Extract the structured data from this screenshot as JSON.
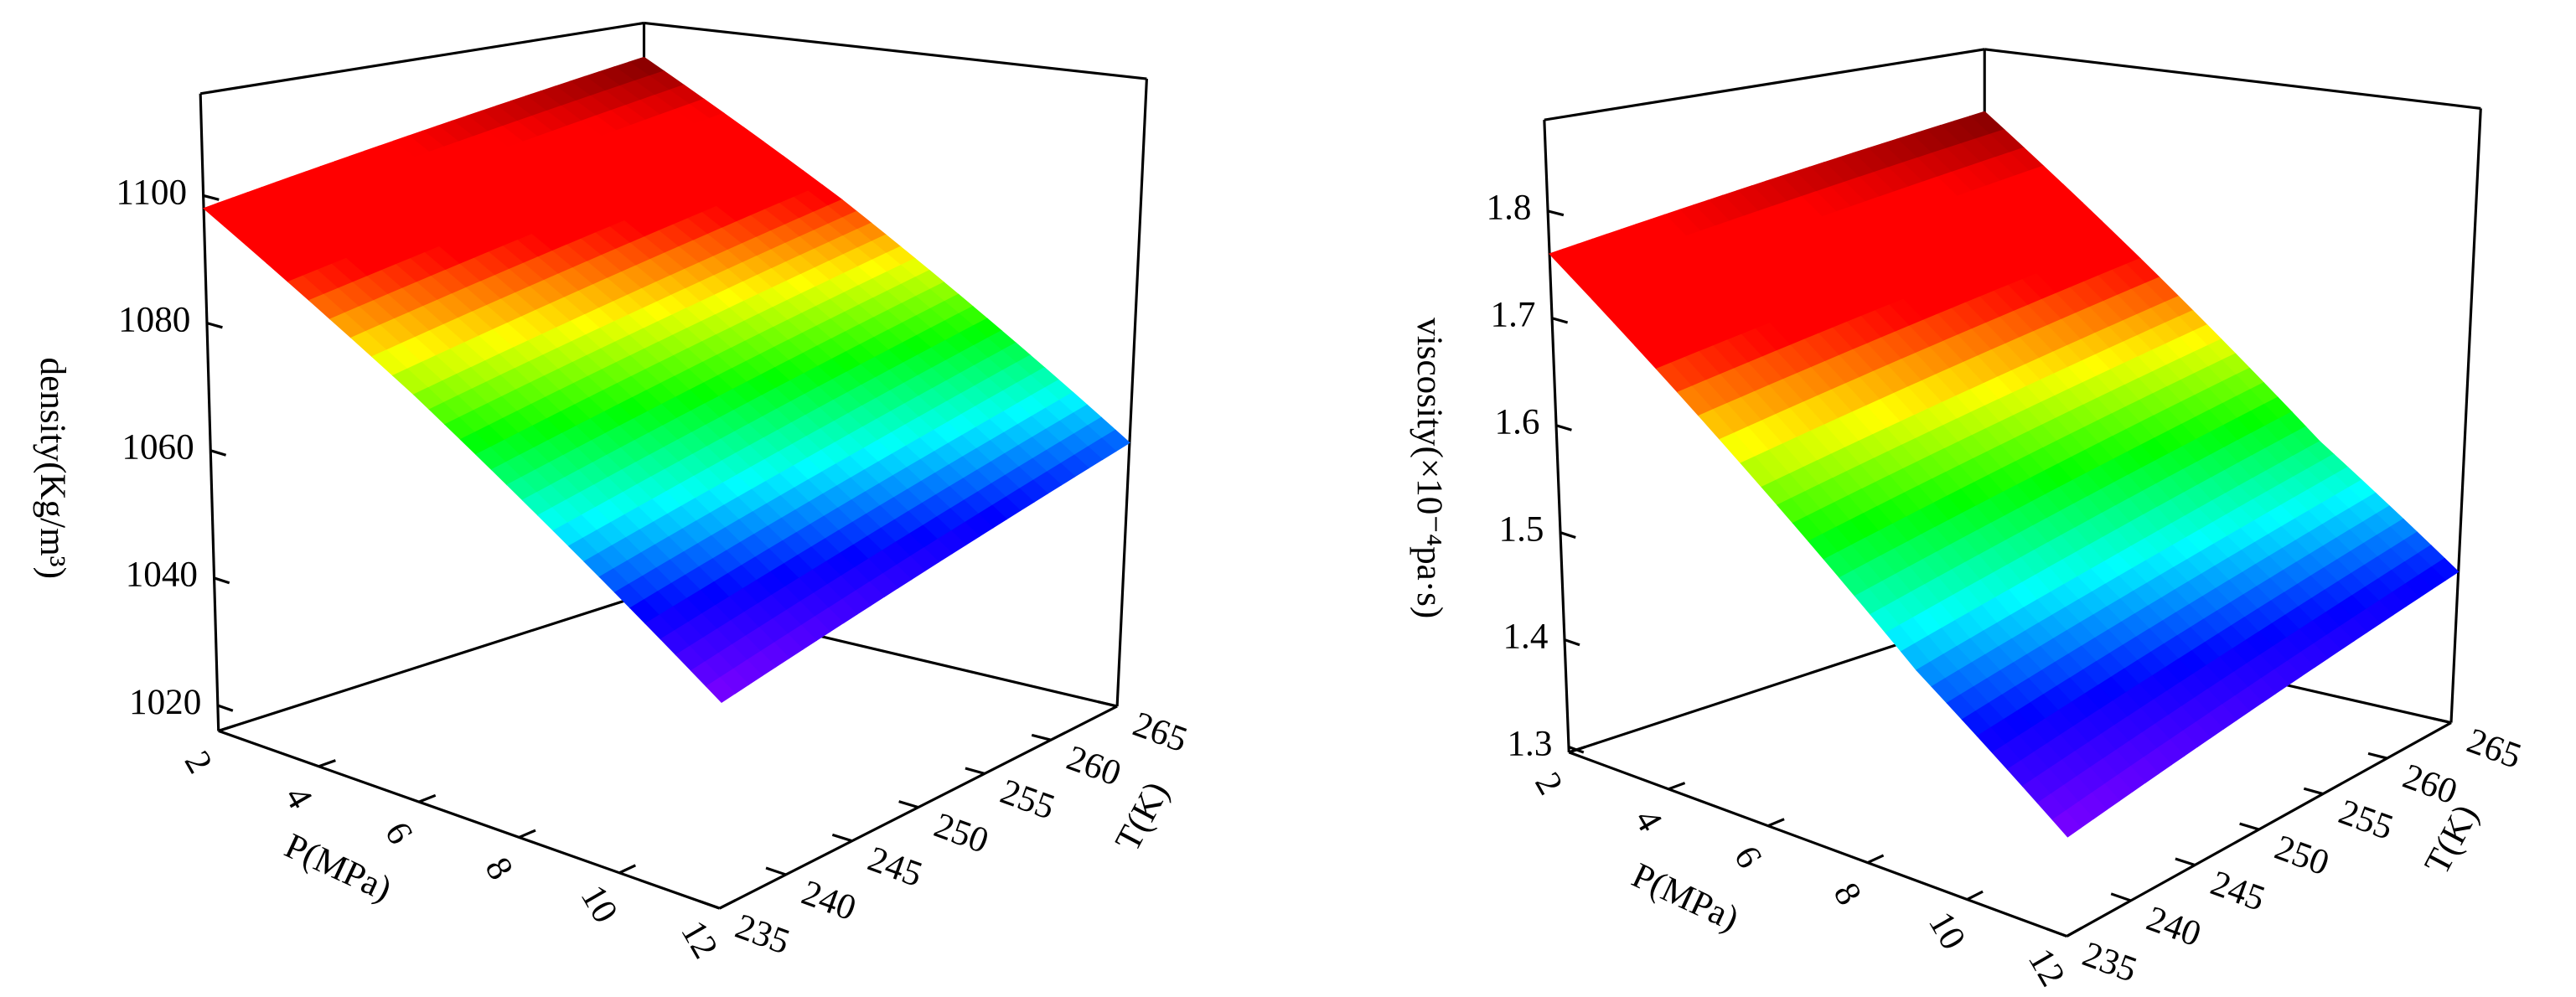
{
  "chart_data": [
    {
      "type": "surface",
      "x_label": "P(MPa)",
      "y_label": "T(K)",
      "z_label": "density(Kg/m³)",
      "x": [
        2,
        6,
        9,
        12
      ],
      "y": [
        235,
        245,
        255,
        265
      ],
      "z": [
        [
          1098,
          1078,
          1062,
          1046
        ],
        [
          1102,
          1082,
          1066,
          1050
        ],
        [
          1106,
          1086,
          1070,
          1054
        ],
        [
          1110,
          1090,
          1074,
          1058
        ]
      ],
      "xlim": [
        2,
        12
      ],
      "ylim": [
        235,
        265
      ],
      "zlim": [
        1016,
        1116
      ],
      "xticks": [
        2,
        4,
        6,
        8,
        10,
        12
      ],
      "yticks": [
        235,
        240,
        245,
        250,
        255,
        260,
        265
      ],
      "zticks": [
        1020,
        1040,
        1060,
        1080,
        1100
      ]
    },
    {
      "type": "surface",
      "x_label": "P(MPa)",
      "y_label": "T(K)",
      "z_label": "viscosity(×10⁻⁴pa·s)",
      "x": [
        2,
        6,
        9,
        12
      ],
      "y": [
        235,
        245,
        255,
        265
      ],
      "z": [
        [
          1.76,
          1.6,
          1.48,
          1.38
        ],
        [
          1.78,
          1.62,
          1.5,
          1.4
        ],
        [
          1.8,
          1.64,
          1.52,
          1.42
        ],
        [
          1.82,
          1.66,
          1.54,
          1.44
        ]
      ],
      "xlim": [
        2,
        12
      ],
      "ylim": [
        235,
        265
      ],
      "zlim": [
        1.295,
        1.885
      ],
      "xticks": [
        2,
        4,
        6,
        8,
        10,
        12
      ],
      "yticks": [
        235,
        240,
        245,
        250,
        255,
        260,
        265
      ],
      "zticks": [
        1.3,
        1.4,
        1.5,
        1.6,
        1.7,
        1.8
      ]
    }
  ]
}
